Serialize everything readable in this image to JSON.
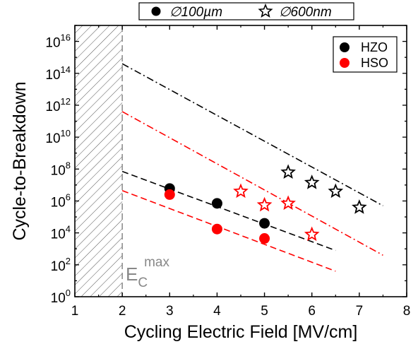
{
  "chart_data": {
    "type": "scatter",
    "xlabel": "Cycling Electric Field [MV/cm]",
    "ylabel": "Cycle-to-Breakdown",
    "xlim": [
      1,
      8
    ],
    "ylim_exponent": [
      0,
      17
    ],
    "yscale": "log",
    "x_ticks": [
      "1",
      "2",
      "3",
      "4",
      "5",
      "6",
      "7",
      "8"
    ],
    "y_ticks": [
      {
        "base": "10",
        "exp": "0",
        "value": 0
      },
      {
        "base": "10",
        "exp": "2",
        "value": 2
      },
      {
        "base": "10",
        "exp": "4",
        "value": 4
      },
      {
        "base": "10",
        "exp": "6",
        "value": 6
      },
      {
        "base": "10",
        "exp": "8",
        "value": 8
      },
      {
        "base": "10",
        "exp": "10",
        "value": 10
      },
      {
        "base": "10",
        "exp": "12",
        "value": 12
      },
      {
        "base": "10",
        "exp": "14",
        "value": 14
      },
      {
        "base": "10",
        "exp": "16",
        "value": 16
      }
    ],
    "top_legend": {
      "circle_label": "∅100µm",
      "star_label": "∅600nm"
    },
    "inner_legend": [
      {
        "name": "HZO",
        "color": "#000000"
      },
      {
        "name": "HSO",
        "color": "#ff0000"
      }
    ],
    "annotation": {
      "base": "E",
      "sub": "C",
      "sup": "max"
    },
    "shaded_region": [
      1,
      2
    ],
    "series": [
      {
        "name": "HZO",
        "device": "∅100µm",
        "marker": "circle",
        "color": "#000000",
        "points": [
          [
            3,
            6.78
          ],
          [
            4,
            5.85
          ],
          [
            5,
            4.6
          ]
        ]
      },
      {
        "name": "HSO",
        "device": "∅100µm",
        "marker": "circle",
        "color": "#ff0000",
        "points": [
          [
            3,
            6.4
          ],
          [
            4,
            4.24
          ],
          [
            5,
            3.65
          ]
        ]
      },
      {
        "name": "HZO",
        "device": "∅600nm",
        "marker": "star",
        "color": "#000000",
        "points": [
          [
            5.5,
            7.8
          ],
          [
            6,
            7.15
          ],
          [
            6.5,
            6.6
          ],
          [
            7,
            5.6
          ]
        ]
      },
      {
        "name": "HSO",
        "device": "∅600nm",
        "marker": "star",
        "color": "#ff0000",
        "points": [
          [
            4.5,
            6.6
          ],
          [
            5,
            5.75
          ],
          [
            5.5,
            5.85
          ],
          [
            6,
            3.9
          ]
        ]
      }
    ],
    "fit_lines": [
      {
        "color": "#000000",
        "style": "dash-dot",
        "points": [
          [
            2,
            14.6
          ],
          [
            7.5,
            5.7
          ]
        ]
      },
      {
        "color": "#ff0000",
        "style": "dash-dot",
        "points": [
          [
            2,
            11.6
          ],
          [
            7.5,
            2.6
          ]
        ]
      },
      {
        "color": "#000000",
        "style": "dashed",
        "points": [
          [
            2,
            7.85
          ],
          [
            6.5,
            2.9
          ]
        ]
      },
      {
        "color": "#ff0000",
        "style": "dashed",
        "points": [
          [
            2,
            6.65
          ],
          [
            6.5,
            1.6
          ]
        ]
      }
    ]
  }
}
